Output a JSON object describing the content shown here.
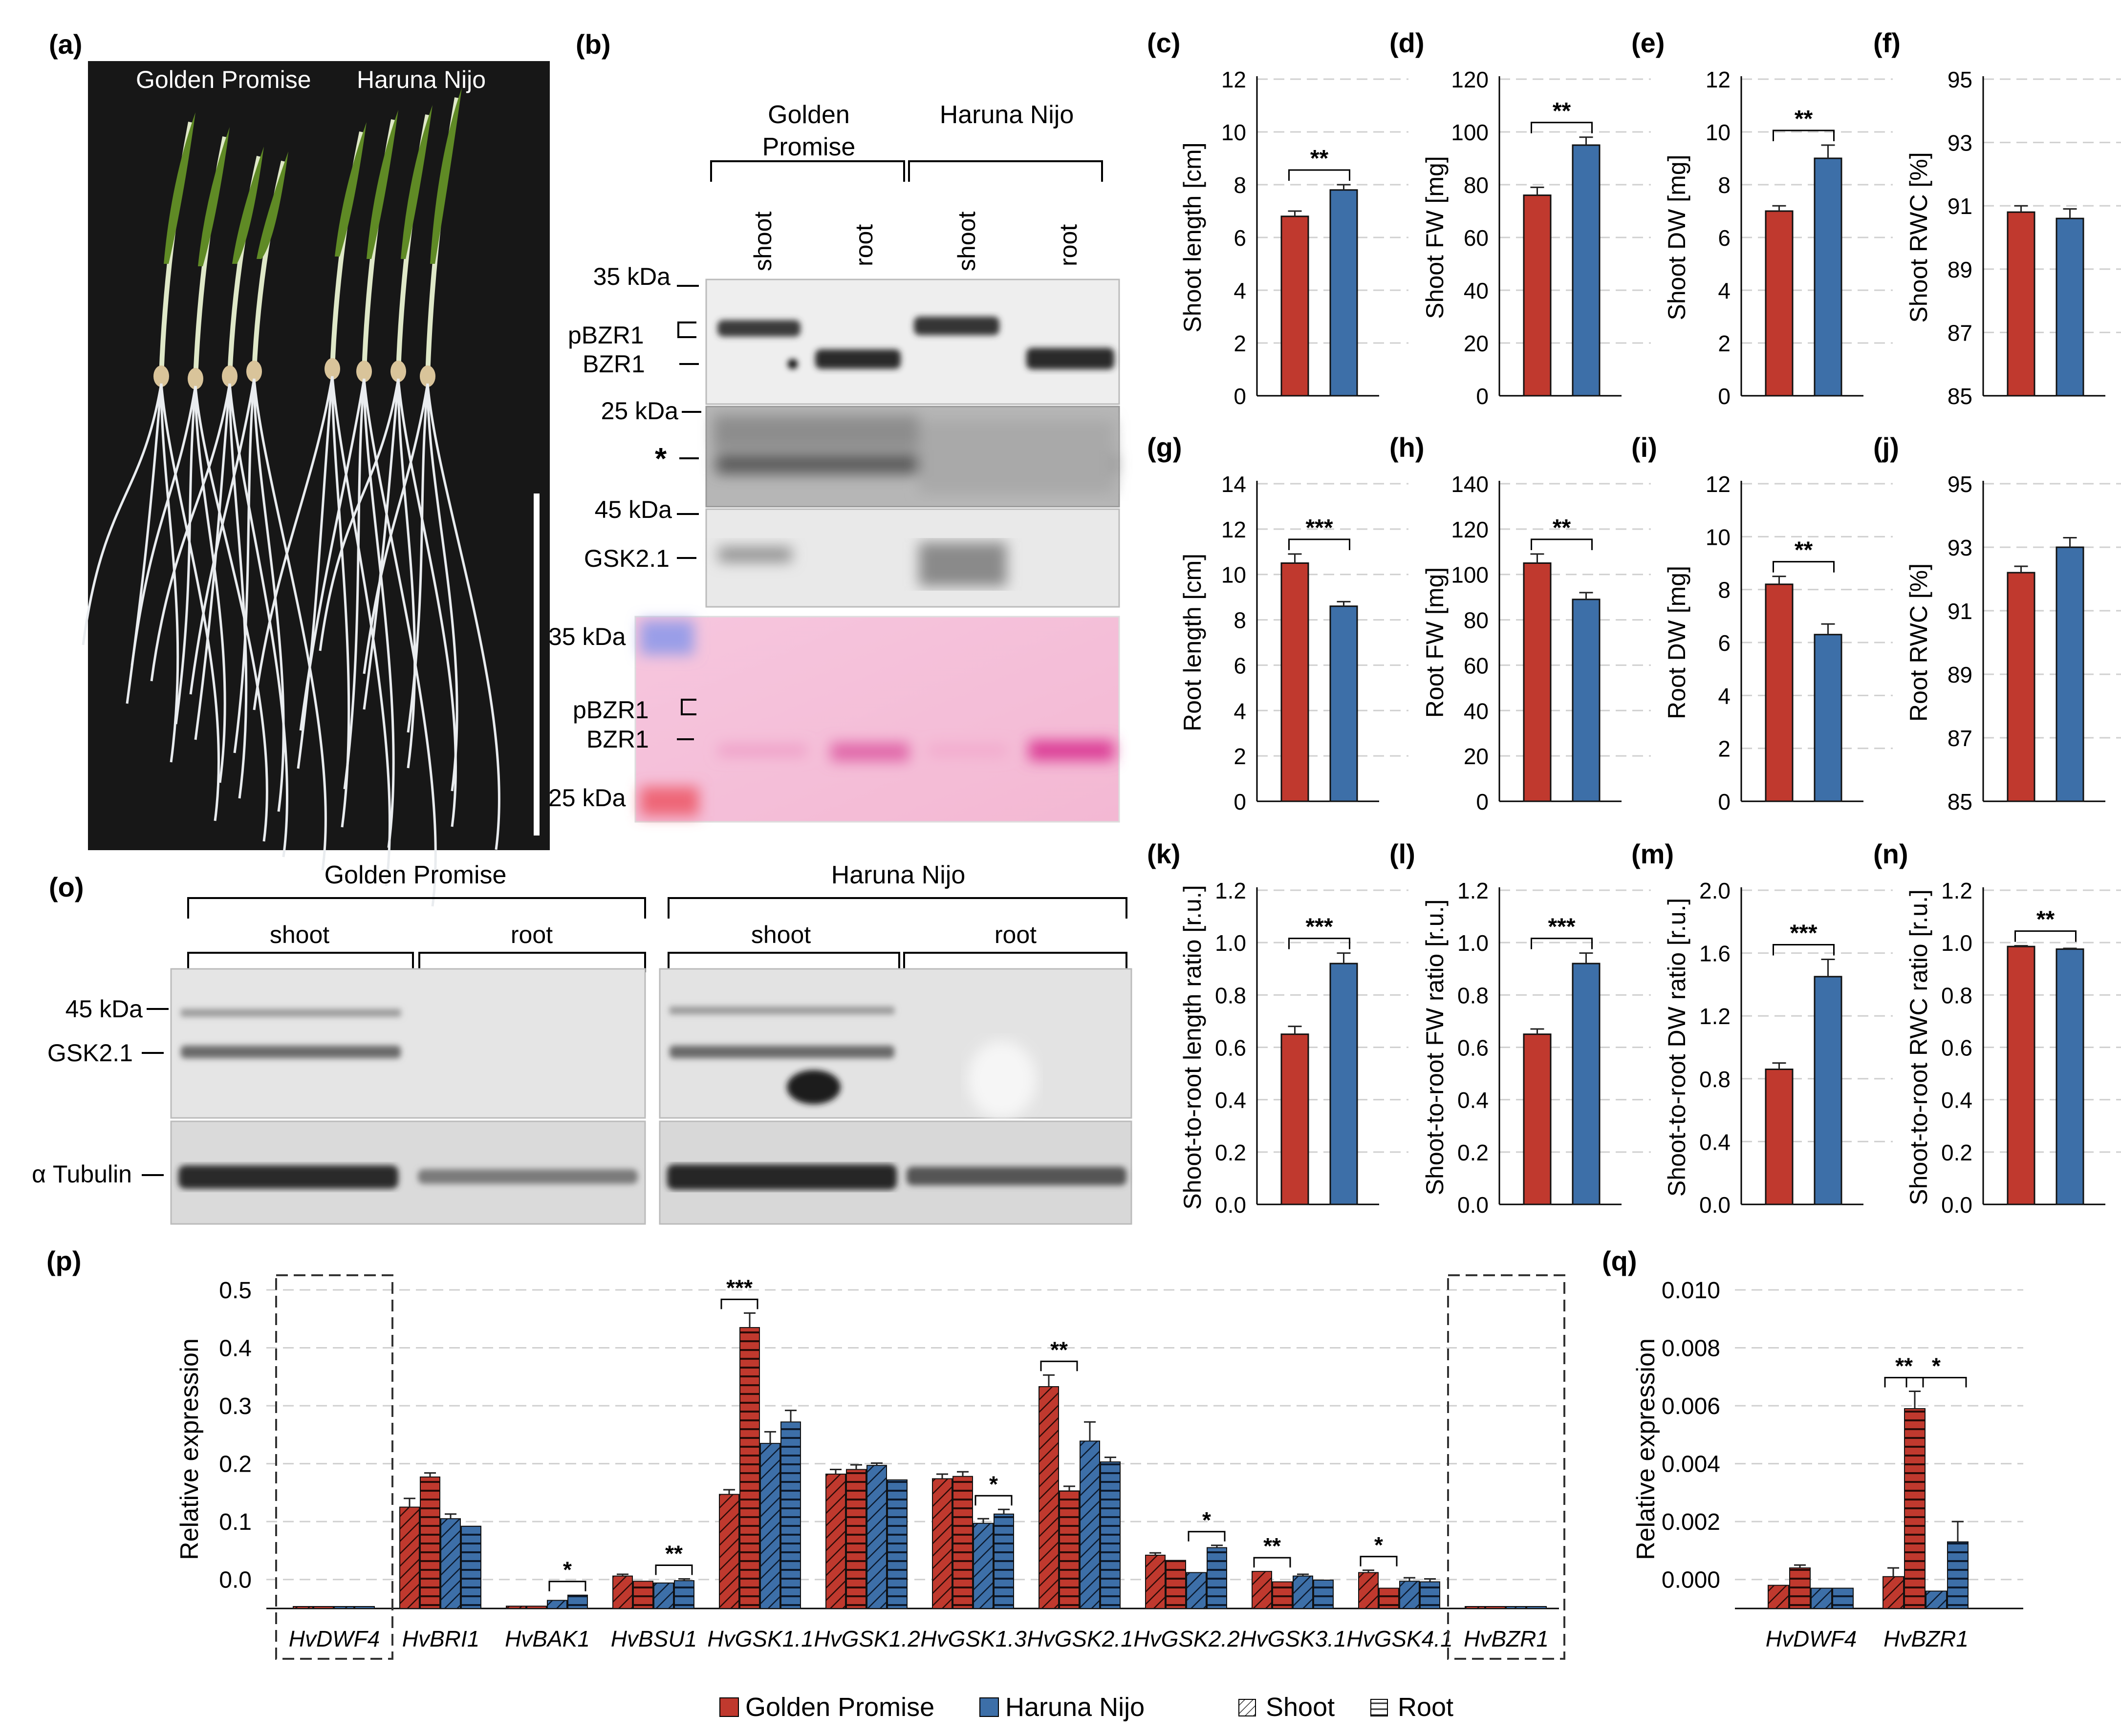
{
  "panel_labels": {
    "a": "(a)",
    "b": "(b)",
    "c": "(c)",
    "d": "(d)",
    "e": "(e)",
    "f": "(f)",
    "g": "(g)",
    "h": "(h)",
    "i": "(i)",
    "j": "(j)",
    "k": "(k)",
    "l": "(l)",
    "m": "(m)",
    "n": "(n)",
    "o": "(o)",
    "p": "(p)",
    "q": "(q)"
  },
  "photo": {
    "label_left": "Golden  Promise",
    "label_right": "Haruna Nijo",
    "background": "#171717"
  },
  "blot_b": {
    "group1": "Golden",
    "group1_line2": "Promise",
    "group2": "Haruna Nijo",
    "lanes": [
      "shoot",
      "root",
      "shoot",
      "root"
    ],
    "markers": {
      "m35": "35 kDa",
      "pbzr1": "pBZR1",
      "bzr1": "BZR1",
      "m25": "25 kDa",
      "star": "*",
      "m45": "45 kDa",
      "gsk": "GSK2.1",
      "ps35": "35 kDa",
      "ps_pbzr1": "pBZR1",
      "ps_bzr1": "BZR1",
      "ps25": "25 kDa"
    }
  },
  "blot_o": {
    "group1": "Golden Promise",
    "group2": "Haruna Nijo",
    "sub": [
      "shoot",
      "root",
      "shoot",
      "root"
    ],
    "markers": {
      "m45": "45 kDa",
      "gsk": "GSK2.1",
      "tub": "α Tubulin"
    }
  },
  "colors": {
    "golden_promise": "#C0392E",
    "haruna_nijo": "#3D6FA8"
  },
  "chart_data": [
    {
      "panel": "c",
      "type": "bar",
      "categories": [
        "Golden Promise",
        "Haruna Nijo"
      ],
      "values": [
        6.8,
        7.8
      ],
      "errors": [
        0.2,
        0.2
      ],
      "ylabel": "Shoot length [cm]",
      "ylim": [
        0,
        12
      ],
      "yticks": [
        "0",
        "2",
        "4",
        "6",
        "8",
        "10",
        "12"
      ],
      "sig": "**"
    },
    {
      "panel": "d",
      "type": "bar",
      "categories": [
        "Golden Promise",
        "Haruna Nijo"
      ],
      "values": [
        76,
        95
      ],
      "errors": [
        3,
        3
      ],
      "ylabel": "Shoot FW [mg]",
      "ylim": [
        0,
        120
      ],
      "yticks": [
        "0",
        "20",
        "40",
        "60",
        "80",
        "100",
        "120"
      ],
      "sig": "**"
    },
    {
      "panel": "e",
      "type": "bar",
      "categories": [
        "Golden Promise",
        "Haruna Nijo"
      ],
      "values": [
        7.0,
        9.0
      ],
      "errors": [
        0.2,
        0.5
      ],
      "ylabel": "Shoot DW [mg]",
      "ylim": [
        0,
        12
      ],
      "yticks": [
        "0",
        "2",
        "4",
        "6",
        "8",
        "10",
        "12"
      ],
      "sig": "**"
    },
    {
      "panel": "f",
      "type": "bar",
      "categories": [
        "Golden Promise",
        "Haruna Nijo"
      ],
      "values": [
        90.8,
        90.6
      ],
      "errors": [
        0.2,
        0.3
      ],
      "ylabel": "Shoot RWC [%]",
      "ylim": [
        85,
        95
      ],
      "yticks": [
        "85",
        "87",
        "89",
        "91",
        "93",
        "95"
      ],
      "sig": ""
    },
    {
      "panel": "g",
      "type": "bar",
      "categories": [
        "Golden Promise",
        "Haruna Nijo"
      ],
      "values": [
        10.5,
        8.6
      ],
      "errors": [
        0.4,
        0.2
      ],
      "ylabel": "Root length [cm]",
      "ylim": [
        0,
        14
      ],
      "yticks": [
        "0",
        "2",
        "4",
        "6",
        "8",
        "10",
        "12",
        "14"
      ],
      "sig": "***"
    },
    {
      "panel": "h",
      "type": "bar",
      "categories": [
        "Golden Promise",
        "Haruna Nijo"
      ],
      "values": [
        105,
        89
      ],
      "errors": [
        4,
        3
      ],
      "ylabel": "Root FW [mg]",
      "ylim": [
        0,
        140
      ],
      "yticks": [
        "0",
        "20",
        "40",
        "60",
        "80",
        "100",
        "120",
        "140"
      ],
      "sig": "**"
    },
    {
      "panel": "i",
      "type": "bar",
      "categories": [
        "Golden Promise",
        "Haruna Nijo"
      ],
      "values": [
        8.2,
        6.3
      ],
      "errors": [
        0.3,
        0.4
      ],
      "ylabel": "Root DW [mg]",
      "ylim": [
        0,
        12
      ],
      "yticks": [
        "0",
        "2",
        "4",
        "6",
        "8",
        "10",
        "12"
      ],
      "sig": "**"
    },
    {
      "panel": "j",
      "type": "bar",
      "categories": [
        "Golden Promise",
        "Haruna Nijo"
      ],
      "values": [
        92.2,
        93.0
      ],
      "errors": [
        0.2,
        0.3
      ],
      "ylabel": "Root RWC [%]",
      "ylim": [
        85,
        95
      ],
      "yticks": [
        "85",
        "87",
        "89",
        "91",
        "93",
        "95"
      ],
      "sig": ""
    },
    {
      "panel": "k",
      "type": "bar",
      "categories": [
        "Golden Promise",
        "Haruna Nijo"
      ],
      "values": [
        0.65,
        0.92
      ],
      "errors": [
        0.03,
        0.04
      ],
      "ylabel": "Shoot-to-root length ratio [r.u.]",
      "ylim": [
        0,
        1.2
      ],
      "yticks": [
        "0.0",
        "0.2",
        "0.4",
        "0.6",
        "0.8",
        "1.0",
        "1.2"
      ],
      "sig": "***"
    },
    {
      "panel": "l",
      "type": "bar",
      "categories": [
        "Golden Promise",
        "Haruna Nijo"
      ],
      "values": [
        0.65,
        0.92
      ],
      "errors": [
        0.02,
        0.04
      ],
      "ylabel": "Shoot-to-root FW ratio [r.u.]",
      "ylim": [
        0,
        1.2
      ],
      "yticks": [
        "0.0",
        "0.2",
        "0.4",
        "0.6",
        "0.8",
        "1.0",
        "1.2"
      ],
      "sig": "***"
    },
    {
      "panel": "m",
      "type": "bar",
      "categories": [
        "Golden Promise",
        "Haruna Nijo"
      ],
      "values": [
        0.86,
        1.45
      ],
      "errors": [
        0.04,
        0.11
      ],
      "ylabel": "Shoot-to-root DW ratio [r.u.]",
      "ylim": [
        0,
        2.0
      ],
      "yticks": [
        "0.0",
        "0.4",
        "0.8",
        "1.2",
        "1.6",
        "2.0"
      ],
      "sig": "***"
    },
    {
      "panel": "n",
      "type": "bar",
      "categories": [
        "Golden Promise",
        "Haruna Nijo"
      ],
      "values": [
        0.985,
        0.975
      ],
      "errors": [
        0.003,
        0.003
      ],
      "ylabel": "Shoot-to-root RWC ratio [r.u.]",
      "ylim": [
        0,
        1.2
      ],
      "yticks": [
        "0.0",
        "0.2",
        "0.4",
        "0.6",
        "0.8",
        "1.0",
        "1.2"
      ],
      "sig": "**"
    },
    {
      "panel": "p",
      "type": "bar",
      "ylabel": "Relative expression",
      "ylim": [
        -0.05,
        0.5
      ],
      "yticks": [
        "0.0",
        "0.1",
        "0.2",
        "0.3",
        "0.4",
        "0.5"
      ],
      "series": [
        {
          "name": "Golden Promise",
          "tissue": "Shoot"
        },
        {
          "name": "Golden Promise",
          "tissue": "Root"
        },
        {
          "name": "Haruna Nijo",
          "tissue": "Shoot"
        },
        {
          "name": "Haruna Nijo",
          "tissue": "Root"
        }
      ],
      "categories": [
        {
          "label": "HvDWF4",
          "boxed": true,
          "values": [
            -0.053,
            -0.053,
            -0.053,
            -0.053
          ],
          "errors": [
            0,
            0,
            0,
            0
          ]
        },
        {
          "label": "HvBRI1",
          "values": [
            0.125,
            0.177,
            0.105,
            0.092
          ],
          "errors": [
            0.015,
            0.007,
            0.008,
            0
          ],
          "sig": {
            "text": "",
            "from": 0,
            "to": 0
          }
        },
        {
          "label": "HvBAK1",
          "values": [
            -0.046,
            -0.046,
            -0.036,
            -0.027
          ],
          "errors": [
            0,
            0,
            0,
            0
          ],
          "sig": {
            "text": "*",
            "from": 2,
            "to": 3
          }
        },
        {
          "label": "HvBSU1",
          "values": [
            0.006,
            -0.003,
            -0.006,
            -0.002
          ],
          "errors": [
            0.003,
            0,
            0,
            0.003
          ],
          "sig": {
            "text": "**",
            "from": 2,
            "to": 3
          }
        },
        {
          "label": "HvGSK1.1",
          "values": [
            0.147,
            0.435,
            0.235,
            0.272
          ],
          "errors": [
            0.008,
            0.025,
            0.02,
            0.02
          ],
          "sig": {
            "text": "***",
            "from": 0,
            "to": 1
          }
        },
        {
          "label": "HvGSK1.2",
          "values": [
            0.182,
            0.19,
            0.197,
            0.172
          ],
          "errors": [
            0.008,
            0.008,
            0.004,
            0
          ],
          "sig": {
            "text": "",
            "from": 0,
            "to": 0
          }
        },
        {
          "label": "HvGSK1.3",
          "values": [
            0.174,
            0.178,
            0.097,
            0.113
          ],
          "errors": [
            0.008,
            0.008,
            0.008,
            0.008
          ],
          "sig": {
            "text": "*",
            "from": 2,
            "to": 3
          }
        },
        {
          "label": "HvGSK2.1",
          "values": [
            0.333,
            0.153,
            0.239,
            0.203
          ],
          "errors": [
            0.02,
            0.008,
            0.033,
            0.008
          ],
          "sig": {
            "text": "**",
            "from": 0,
            "to": 1
          }
        },
        {
          "label": "HvGSK2.2",
          "values": [
            0.042,
            0.033,
            0.012,
            0.055
          ],
          "errors": [
            0.004,
            0,
            0,
            0.004
          ],
          "sig": {
            "text": "*",
            "from": 2,
            "to": 3
          }
        },
        {
          "label": "HvGSK3.1",
          "values": [
            0.014,
            -0.004,
            0.006,
            -0.001
          ],
          "errors": [
            0,
            0,
            0.003,
            0
          ],
          "sig": {
            "text": "**",
            "from": 0,
            "to": 1
          }
        },
        {
          "label": "HvGSK4.1",
          "values": [
            0.012,
            -0.015,
            -0.003,
            -0.004
          ],
          "errors": [
            0.004,
            0,
            0.006,
            0.005
          ],
          "sig": {
            "text": "*",
            "from": 0,
            "to": 1
          }
        },
        {
          "label": "HvBZR1",
          "boxed": true,
          "values": [
            -0.052,
            -0.049,
            -0.052,
            -0.052
          ],
          "errors": [
            0,
            0,
            0,
            0
          ]
        }
      ]
    },
    {
      "panel": "q",
      "type": "bar",
      "ylabel": "Relative expression",
      "ylim": [
        -0.001,
        0.01
      ],
      "yticks": [
        "0.000",
        "0.002",
        "0.004",
        "0.006",
        "0.008",
        "0.010"
      ],
      "series": [
        {
          "name": "Golden Promise",
          "tissue": "Shoot"
        },
        {
          "name": "Golden Promise",
          "tissue": "Root"
        },
        {
          "name": "Haruna Nijo",
          "tissue": "Shoot"
        },
        {
          "name": "Haruna Nijo",
          "tissue": "Root"
        }
      ],
      "categories": [
        {
          "label": "HvDWF4",
          "values": [
            -0.0002,
            0.0004,
            -0.0003,
            -0.0003
          ],
          "errors": [
            0,
            0.0001,
            0,
            0
          ]
        },
        {
          "label": "HvBZR1",
          "values": [
            0.0001,
            0.0059,
            -0.0004,
            0.0013
          ],
          "errors": [
            0.0003,
            0.0006,
            0,
            0.0007
          ],
          "sig": [
            {
              "text": "**",
              "from": 0,
              "to": 1
            },
            {
              "text": "*",
              "from": 1,
              "to": 3
            }
          ]
        }
      ]
    }
  ],
  "legend": {
    "gp": "Golden Promise",
    "hn": "Haruna Nijo",
    "shoot": "Shoot",
    "root": "Root"
  }
}
